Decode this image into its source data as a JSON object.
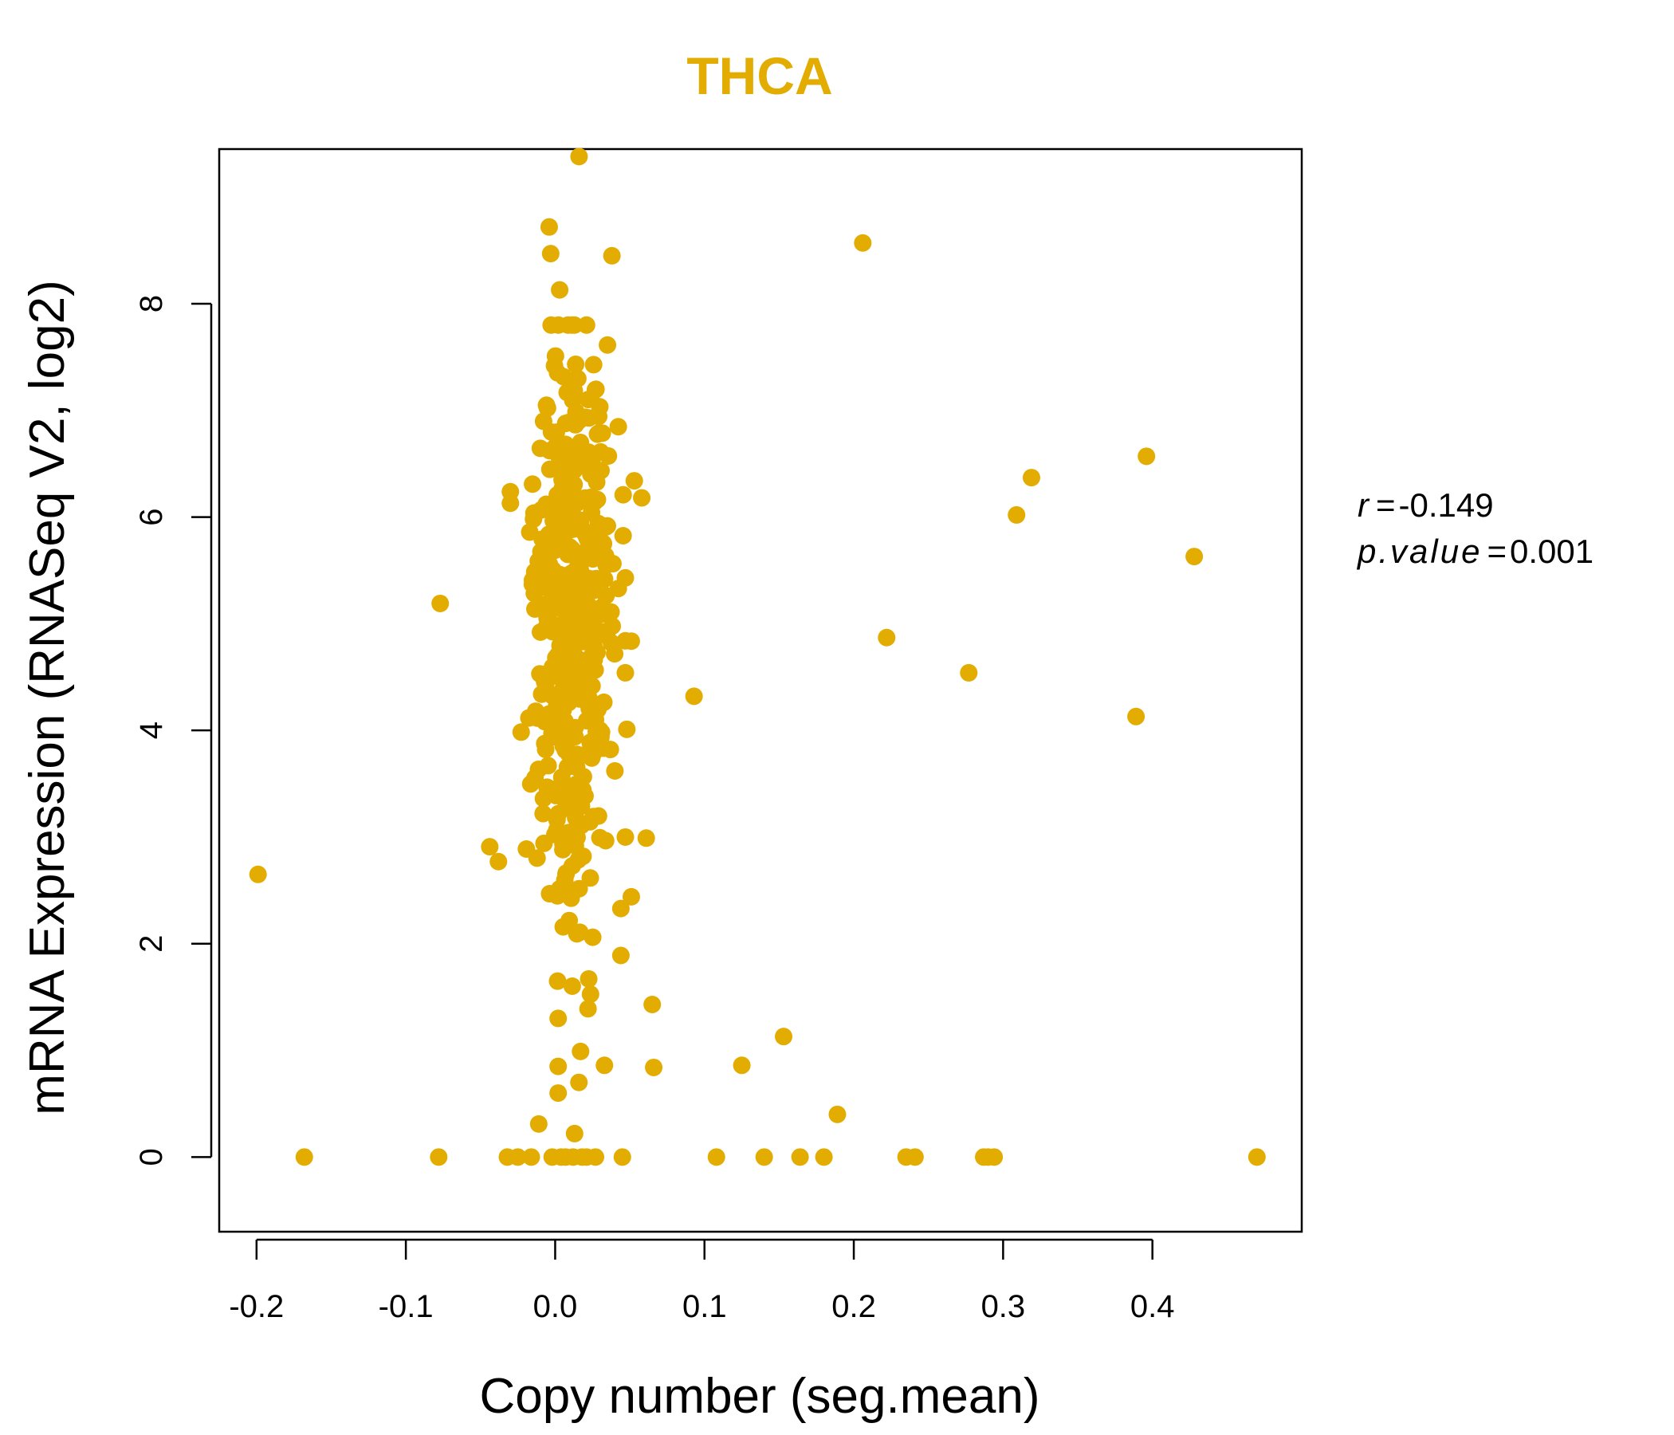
{
  "chart_data": {
    "type": "scatter",
    "title": "THCA",
    "xlabel": "Copy number (seg.mean)",
    "ylabel": "mRNA Expression (RNASeq V2, log2)",
    "xlim": [
      -0.225,
      0.5
    ],
    "ylim": [
      -0.7,
      9.45
    ],
    "xticks": [
      -0.2,
      -0.1,
      0.0,
      0.1,
      0.2,
      0.3,
      0.4
    ],
    "xtick_labels": [
      "-0.2",
      "-0.1",
      "0.0",
      "0.1",
      "0.2",
      "0.3",
      "0.4"
    ],
    "yticks": [
      0,
      2,
      4,
      6,
      8
    ],
    "ytick_labels": [
      "0",
      "2",
      "4",
      "6",
      "8"
    ],
    "stats": {
      "r_label": "r",
      "r_value": "-0.149",
      "p_label": "p.value",
      "p_value": "0.001"
    },
    "color": "#E3AC00",
    "outliers": [
      {
        "x": -0.199,
        "y": 2.65
      },
      {
        "x": -0.168,
        "y": 0.0
      },
      {
        "x": -0.078,
        "y": 0.0
      },
      {
        "x": -0.077,
        "y": 5.19
      },
      {
        "x": -0.038,
        "y": 2.77
      },
      {
        "x": -0.032,
        "y": 0.0
      },
      {
        "x": -0.025,
        "y": 0.0
      },
      {
        "x": -0.016,
        "y": 0.0
      },
      {
        "x": -0.03,
        "y": 6.13
      },
      {
        "x": 0.093,
        "y": 4.32
      },
      {
        "x": 0.108,
        "y": 0.0
      },
      {
        "x": 0.125,
        "y": 0.86
      },
      {
        "x": 0.14,
        "y": 0.0
      },
      {
        "x": 0.153,
        "y": 1.13
      },
      {
        "x": 0.164,
        "y": 0.0
      },
      {
        "x": 0.18,
        "y": 0.0
      },
      {
        "x": 0.189,
        "y": 0.4
      },
      {
        "x": 0.206,
        "y": 8.57
      },
      {
        "x": 0.222,
        "y": 4.87
      },
      {
        "x": 0.235,
        "y": 0.0
      },
      {
        "x": 0.241,
        "y": 0.0
      },
      {
        "x": 0.277,
        "y": 4.54
      },
      {
        "x": 0.287,
        "y": 0.0
      },
      {
        "x": 0.29,
        "y": 0.0
      },
      {
        "x": 0.294,
        "y": 0.0
      },
      {
        "x": 0.309,
        "y": 6.02
      },
      {
        "x": 0.319,
        "y": 6.37
      },
      {
        "x": 0.389,
        "y": 4.13
      },
      {
        "x": 0.396,
        "y": 6.57
      },
      {
        "x": 0.428,
        "y": 5.63
      },
      {
        "x": 0.47,
        "y": 0.0
      },
      {
        "x": 0.016,
        "y": 9.38
      },
      {
        "x": -0.004,
        "y": 8.72
      },
      {
        "x": -0.003,
        "y": 8.47
      },
      {
        "x": 0.038,
        "y": 8.45
      },
      {
        "x": 0.003,
        "y": 8.13
      },
      {
        "x": 0.058,
        "y": 6.18
      },
      {
        "x": 0.053,
        "y": 6.34
      },
      {
        "x": 0.047,
        "y": 5.43
      },
      {
        "x": 0.047,
        "y": 4.84
      },
      {
        "x": 0.047,
        "y": 4.54
      },
      {
        "x": 0.048,
        "y": 4.01
      },
      {
        "x": 0.04,
        "y": 3.62
      },
      {
        "x": 0.061,
        "y": 2.99
      },
      {
        "x": 0.047,
        "y": 3.0
      },
      {
        "x": 0.051,
        "y": 2.44
      },
      {
        "x": 0.044,
        "y": 2.33
      },
      {
        "x": 0.044,
        "y": 1.89
      },
      {
        "x": 0.065,
        "y": 1.43
      },
      {
        "x": 0.066,
        "y": 0.84
      },
      {
        "x": 0.045,
        "y": 0.0
      },
      {
        "x": 0.002,
        "y": 1.3
      },
      {
        "x": 0.022,
        "y": 1.39
      },
      {
        "x": 0.017,
        "y": 0.99
      },
      {
        "x": 0.033,
        "y": 0.86
      },
      {
        "x": 0.002,
        "y": 0.85
      },
      {
        "x": 0.002,
        "y": 0.6
      },
      {
        "x": -0.011,
        "y": 0.31
      },
      {
        "x": 0.013,
        "y": 0.22
      },
      {
        "x": 0.004,
        "y": 0.0
      },
      {
        "x": 0.012,
        "y": 0.0
      },
      {
        "x": 0.018,
        "y": 0.0
      },
      {
        "x": 0.021,
        "y": 0.0
      },
      {
        "x": 0.027,
        "y": 0.0
      },
      {
        "x": -0.002,
        "y": 0.0
      },
      {
        "x": 0.007,
        "y": 0.0
      }
    ],
    "cluster": {
      "x_center": 0.011,
      "x_spread": 0.016,
      "y_center": 5.0,
      "y_spread": 1.35,
      "y_range": [
        0.7,
        7.8
      ],
      "count": 420
    }
  }
}
